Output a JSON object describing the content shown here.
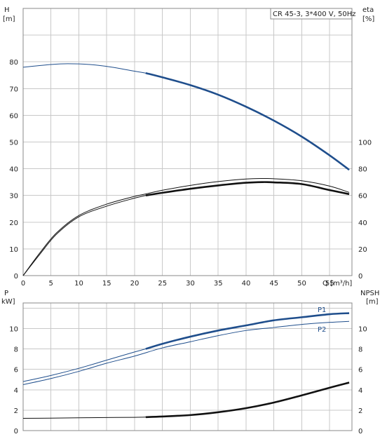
{
  "chart_data": [
    {
      "type": "line",
      "id": "top",
      "legend": "CR 45-3, 3*400 V, 50Hz",
      "xlabel": "Q [m³/h]",
      "xlim": [
        0,
        59
      ],
      "x_ticks": [
        0,
        5,
        10,
        15,
        20,
        25,
        30,
        35,
        40,
        45,
        50,
        55
      ],
      "left_axis": {
        "title": "H",
        "unit": "[m]",
        "ylim": [
          0,
          100
        ],
        "ticks": [
          0,
          10,
          20,
          30,
          40,
          50,
          60,
          70,
          80
        ]
      },
      "right_axis": {
        "title": "eta",
        "unit": "[%]",
        "ylim": [
          0,
          200
        ],
        "ticks": [
          0,
          20,
          40,
          60,
          80,
          100
        ]
      },
      "series": [
        {
          "axis": "left",
          "color": "#1f4e8c",
          "x": [
            0,
            5,
            8,
            12,
            16,
            20,
            22,
            25,
            30,
            35,
            40,
            45,
            50,
            55,
            58.5
          ],
          "y": [
            78,
            79,
            79.3,
            79,
            78,
            76.5,
            75.8,
            74.2,
            71.3,
            67.7,
            63.2,
            58,
            52,
            45,
            39.6
          ],
          "bold_from": 22
        },
        {
          "axis": "right",
          "color": "#111111",
          "x": [
            0,
            3,
            6,
            10,
            15,
            20,
            22,
            25,
            30,
            35,
            40,
            43,
            45,
            50,
            55,
            58.5
          ],
          "y": [
            0,
            17,
            32,
            45,
            53.5,
            59.3,
            61.1,
            63.9,
            67.5,
            70.4,
            72.3,
            72.7,
            72.5,
            71,
            67,
            62.3
          ]
        },
        {
          "axis": "right",
          "color": "#111111",
          "x": [
            0,
            3,
            6,
            10,
            15,
            20,
            22,
            25,
            30,
            35,
            40,
            43,
            45,
            50,
            55,
            58.5
          ],
          "y": [
            0,
            16,
            31,
            44,
            52,
            58,
            60,
            62,
            65,
            67.5,
            69.5,
            70,
            69.8,
            68.5,
            64,
            61
          ],
          "bold_from": 22
        }
      ]
    },
    {
      "type": "line",
      "id": "bottom",
      "xlim": [
        0,
        59
      ],
      "x_ticks": [
        0,
        5,
        10,
        15,
        20,
        25,
        30,
        35,
        40,
        45,
        50,
        55
      ],
      "left_axis": {
        "title": "P",
        "unit": "kW]",
        "ylim": [
          0,
          12.5
        ],
        "ticks": [
          0,
          2,
          4,
          6,
          8,
          10
        ]
      },
      "right_axis": {
        "title": "NPSH",
        "unit": "[m]",
        "ylim": [
          0,
          12.5
        ],
        "ticks": [
          0,
          2,
          4,
          6,
          8,
          10
        ]
      },
      "series": [
        {
          "name": "P1",
          "axis": "left",
          "color": "#1f4e8c",
          "x": [
            0,
            5,
            10,
            15,
            20,
            22,
            25,
            30,
            35,
            40,
            45,
            50,
            55,
            58.5
          ],
          "y": [
            4.8,
            5.4,
            6.1,
            6.9,
            7.7,
            8.0,
            8.5,
            9.2,
            9.8,
            10.3,
            10.8,
            11.1,
            11.4,
            11.5
          ],
          "bold_from": 22
        },
        {
          "name": "P2",
          "axis": "left",
          "color": "#1f4e8c",
          "x": [
            0,
            5,
            10,
            15,
            20,
            25,
            30,
            35,
            40,
            45,
            50,
            55,
            58.5
          ],
          "y": [
            4.5,
            5.1,
            5.8,
            6.6,
            7.3,
            8.1,
            8.7,
            9.3,
            9.8,
            10.1,
            10.4,
            10.6,
            10.7
          ]
        },
        {
          "axis": "right",
          "color": "#111111",
          "x": [
            0,
            5,
            10,
            15,
            20,
            22,
            25,
            30,
            35,
            40,
            45,
            50,
            55,
            58.5
          ],
          "y": [
            1.2,
            1.22,
            1.25,
            1.28,
            1.3,
            1.32,
            1.38,
            1.52,
            1.8,
            2.2,
            2.75,
            3.45,
            4.2,
            4.7
          ],
          "bold_from": 22
        }
      ]
    }
  ]
}
